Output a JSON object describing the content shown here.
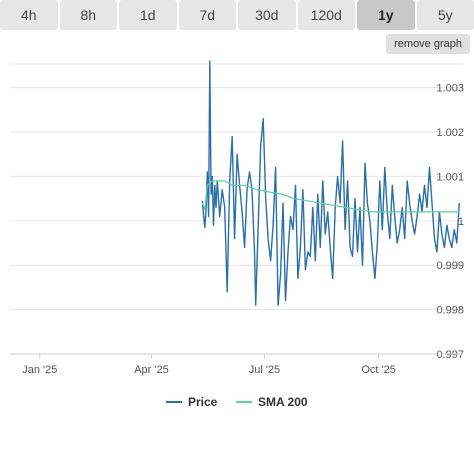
{
  "tabs": [
    {
      "label": "4h",
      "active": false
    },
    {
      "label": "8h",
      "active": false
    },
    {
      "label": "1d",
      "active": false
    },
    {
      "label": "7d",
      "active": false
    },
    {
      "label": "30d",
      "active": false
    },
    {
      "label": "120d",
      "active": false
    },
    {
      "label": "1y",
      "active": true
    },
    {
      "label": "5y",
      "active": false
    }
  ],
  "remove_graph_label": "remove graph",
  "colors": {
    "price": "#2a6fa8",
    "sma": "#5fcf95",
    "grid": "#e6e6e6",
    "axis_text": "#555555"
  },
  "chart_data": {
    "type": "line",
    "ylim": [
      0.997,
      1.0036
    ],
    "y_ticks": [
      "0.997",
      "0.998",
      "0.999",
      "1",
      "1.001",
      "1.002",
      "1.003"
    ],
    "x_ticks": [
      "Jan '25",
      "Apr '25",
      "Jul '25",
      "Oct '25"
    ],
    "xlim": [
      "2024-12-08",
      "2025-12-08"
    ],
    "legend_position": "bottom-center",
    "series": [
      {
        "name": "Price",
        "points": [
          [
            "2025-05-12",
            1.00045
          ],
          [
            "2025-05-13",
            1.0001
          ],
          [
            "2025-05-14",
            0.99985
          ],
          [
            "2025-05-15",
            1.0003
          ],
          [
            "2025-05-16",
            1.0011
          ],
          [
            "2025-05-17",
            1.0001
          ],
          [
            "2025-05-18",
            1.0036
          ],
          [
            "2025-05-19",
            1.0006
          ],
          [
            "2025-05-20",
            1.001
          ],
          [
            "2025-05-21",
            0.9999
          ],
          [
            "2025-05-22",
            1.0008
          ],
          [
            "2025-05-23",
            1.0003
          ],
          [
            "2025-05-24",
            1.0009
          ],
          [
            "2025-05-25",
            1.0005
          ],
          [
            "2025-05-26",
            1.0001
          ],
          [
            "2025-05-28",
            1.0007
          ],
          [
            "2025-05-30",
            1.0003
          ],
          [
            "2025-06-01",
            0.9984
          ],
          [
            "2025-06-03",
            1.0009
          ],
          [
            "2025-06-05",
            1.0019
          ],
          [
            "2025-06-07",
            0.9996
          ],
          [
            "2025-06-09",
            1.0015
          ],
          [
            "2025-06-11",
            1.0008
          ],
          [
            "2025-06-13",
            1.0002
          ],
          [
            "2025-06-15",
            0.9994
          ],
          [
            "2025-06-17",
            1.0007
          ],
          [
            "2025-06-19",
            1.0011
          ],
          [
            "2025-06-21",
            1.0007
          ],
          [
            "2025-06-23",
            0.9993
          ],
          [
            "2025-06-24",
            0.9981
          ],
          [
            "2025-06-26",
            0.9999
          ],
          [
            "2025-06-28",
            1.0017
          ],
          [
            "2025-06-30",
            1.0023
          ],
          [
            "2025-07-02",
            1.0005
          ],
          [
            "2025-07-04",
            0.9996
          ],
          [
            "2025-07-06",
            0.9991
          ],
          [
            "2025-07-08",
            0.9999
          ],
          [
            "2025-07-10",
            1.0012
          ],
          [
            "2025-07-12",
            0.9981
          ],
          [
            "2025-07-14",
            0.9988
          ],
          [
            "2025-07-16",
            1.0004
          ],
          [
            "2025-07-18",
            0.9982
          ],
          [
            "2025-07-20",
            0.9993
          ],
          [
            "2025-07-22",
            1.0001
          ],
          [
            "2025-07-24",
            0.9998
          ],
          [
            "2025-07-26",
            1.0008
          ],
          [
            "2025-07-28",
            0.9987
          ],
          [
            "2025-07-30",
            0.9994
          ],
          [
            "2025-08-01",
            1.0007
          ],
          [
            "2025-08-03",
            0.9989
          ],
          [
            "2025-08-05",
            0.9993
          ],
          [
            "2025-08-07",
            0.9992
          ],
          [
            "2025-08-09",
            1.0003
          ],
          [
            "2025-08-11",
            0.9991
          ],
          [
            "2025-08-13",
            1.0006
          ],
          [
            "2025-08-15",
            0.9994
          ],
          [
            "2025-08-17",
            1.0009
          ],
          [
            "2025-08-19",
            0.9997
          ],
          [
            "2025-08-21",
            1.0002
          ],
          [
            "2025-08-23",
            0.9994
          ],
          [
            "2025-08-25",
            0.9987
          ],
          [
            "2025-08-27",
            1.0003
          ],
          [
            "2025-08-29",
            1.001
          ],
          [
            "2025-08-31",
            1.0004
          ],
          [
            "2025-09-02",
            1.0018
          ],
          [
            "2025-09-04",
            0.9998
          ],
          [
            "2025-09-06",
            1.0009
          ],
          [
            "2025-09-08",
            0.9994
          ],
          [
            "2025-09-10",
            0.9992
          ],
          [
            "2025-09-12",
            1.0005
          ],
          [
            "2025-09-14",
            0.9993
          ],
          [
            "2025-09-16",
            1.0003
          ],
          [
            "2025-09-18",
            0.999
          ],
          [
            "2025-09-20",
            1.0013
          ],
          [
            "2025-09-22",
            1.0004
          ],
          [
            "2025-09-24",
            1.0
          ],
          [
            "2025-09-26",
            0.9993
          ],
          [
            "2025-09-28",
            0.9987
          ],
          [
            "2025-09-30",
            0.9995
          ],
          [
            "2025-10-02",
            1.0009
          ],
          [
            "2025-10-04",
            0.9998
          ],
          [
            "2025-10-06",
            1.0012
          ],
          [
            "2025-10-08",
            1.0002
          ],
          [
            "2025-10-10",
            0.9996
          ],
          [
            "2025-10-12",
            1.0008
          ],
          [
            "2025-10-14",
            1.0001
          ],
          [
            "2025-10-16",
            0.9995
          ],
          [
            "2025-10-18",
            0.9998
          ],
          [
            "2025-10-20",
            1.0003
          ],
          [
            "2025-10-22",
            0.9996
          ],
          [
            "2025-10-24",
            1.0009
          ],
          [
            "2025-10-26",
            1.0004
          ],
          [
            "2025-10-28",
            1.0
          ],
          [
            "2025-10-30",
            0.9997
          ],
          [
            "2025-11-01",
            1.0001
          ],
          [
            "2025-11-03",
            1.0006
          ],
          [
            "2025-11-05",
            1.0002
          ],
          [
            "2025-11-07",
            1.0008
          ],
          [
            "2025-11-09",
            1.0003
          ],
          [
            "2025-11-11",
            1.0012
          ],
          [
            "2025-11-13",
            1.0004
          ],
          [
            "2025-11-15",
            0.9996
          ],
          [
            "2025-11-17",
            0.9993
          ],
          [
            "2025-11-19",
            1.0002
          ],
          [
            "2025-11-21",
            0.9997
          ],
          [
            "2025-11-23",
            0.9994
          ],
          [
            "2025-11-25",
            0.9999
          ],
          [
            "2025-11-27",
            0.9996
          ],
          [
            "2025-11-29",
            0.9994
          ],
          [
            "2025-12-01",
            0.9998
          ],
          [
            "2025-12-03",
            0.9995
          ],
          [
            "2025-12-05",
            1.0004
          ]
        ]
      },
      {
        "name": "SMA 200",
        "points": [
          [
            "2025-05-12",
            1.0004
          ],
          [
            "2025-05-14",
            1.00025
          ],
          [
            "2025-05-16",
            1.0008
          ],
          [
            "2025-05-20",
            1.0009
          ],
          [
            "2025-05-25",
            1.0009
          ],
          [
            "2025-05-30",
            1.0009
          ],
          [
            "2025-06-05",
            1.0008
          ],
          [
            "2025-06-15",
            1.0008
          ],
          [
            "2025-06-25",
            1.0007
          ],
          [
            "2025-07-05",
            1.00065
          ],
          [
            "2025-07-15",
            1.0006
          ],
          [
            "2025-07-25",
            1.0005
          ],
          [
            "2025-08-05",
            1.00045
          ],
          [
            "2025-08-15",
            1.0004
          ],
          [
            "2025-08-25",
            1.00035
          ],
          [
            "2025-09-05",
            1.0003
          ],
          [
            "2025-09-15",
            1.00025
          ],
          [
            "2025-09-25",
            1.0002
          ],
          [
            "2025-10-05",
            1.0002
          ],
          [
            "2025-10-15",
            1.0002
          ],
          [
            "2025-10-25",
            1.0002
          ],
          [
            "2025-11-05",
            1.0002
          ],
          [
            "2025-11-15",
            1.0002
          ],
          [
            "2025-11-25",
            1.0002
          ],
          [
            "2025-12-05",
            1.0002
          ]
        ]
      }
    ]
  }
}
